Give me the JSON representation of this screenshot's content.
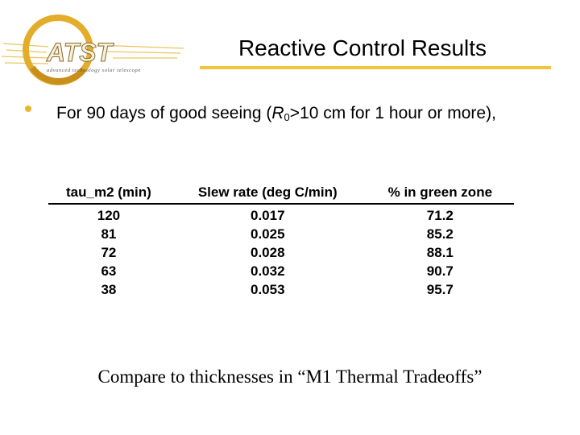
{
  "header": {
    "logo_text": "ATST",
    "logo_subtitle": "advanced technology solar telescope",
    "title": "Reactive Control Results"
  },
  "bullet": {
    "text_before": "For 90 days of good seeing (",
    "var_main": "R",
    "var_sub": "0",
    "text_after": ">10 cm for 1 hour or more),"
  },
  "table": {
    "headers": [
      "tau_m2 (min)",
      "Slew rate (deg C/min)",
      "% in green zone"
    ],
    "rows": [
      [
        "120",
        "0.017",
        "71.2"
      ],
      [
        "81",
        "0.025",
        "85.2"
      ],
      [
        "72",
        "0.028",
        "88.1"
      ],
      [
        "63",
        "0.032",
        "90.7"
      ],
      [
        "38",
        "0.053",
        "95.7"
      ]
    ]
  },
  "caption": "Compare to thicknesses in “M1 Thermal Tradeoffs”",
  "colors": {
    "accent": "#f0c43c",
    "bullet": "#e8b52b",
    "logo_ring": "#e3ad2a"
  }
}
